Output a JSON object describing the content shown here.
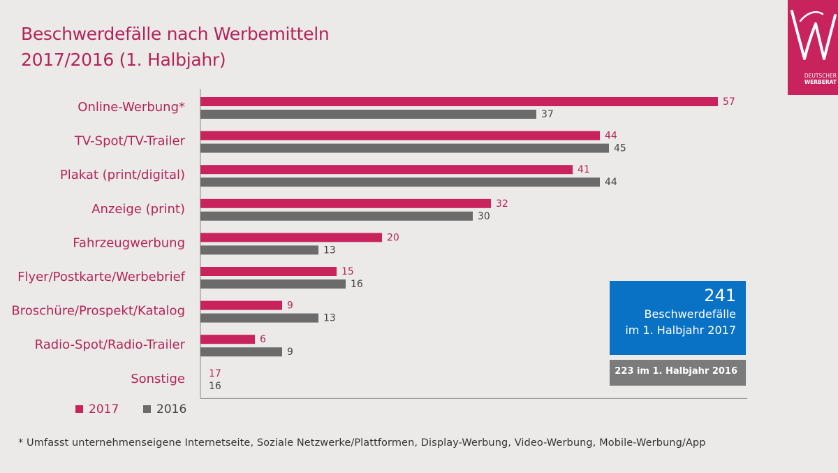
{
  "title_line1": "Beschwerdefälle nach Werbemitteln",
  "title_line2": "2017/2016 (1. Halbjahr)",
  "logo": {
    "icon": "werberat-w-logo",
    "line1": "DEUTSCHER",
    "line2": "WERBERAT"
  },
  "chart_data": {
    "type": "bar",
    "orientation": "horizontal",
    "title": "Beschwerdefälle nach Werbemitteln 2017/2016 (1. Halbjahr)",
    "categories": [
      "Online-Werbung*",
      "TV-Spot/TV-Trailer",
      "Plakat (print/digital)",
      "Anzeige (print)",
      "Fahrzeugwerbung",
      "Flyer/Postkarte/Werbebrief",
      "Broschüre/Prospekt/Katalog",
      "Radio-Spot/Radio-Trailer",
      "Sonstige"
    ],
    "series": [
      {
        "name": "2017",
        "color": "#c8235c",
        "values": [
          57,
          44,
          41,
          32,
          20,
          15,
          9,
          6,
          17
        ]
      },
      {
        "name": "2016",
        "color": "#6b6b6b",
        "values": [
          37,
          45,
          44,
          30,
          13,
          16,
          13,
          9,
          16
        ]
      }
    ],
    "value_labels_bar_scaled": [
      true,
      true,
      true,
      true,
      true,
      true,
      true,
      true,
      false
    ],
    "xlim": [
      0,
      58
    ],
    "legend_position": "bottom-left"
  },
  "kpi": {
    "number": "241",
    "line1": "Beschwerdefälle",
    "line2": "im 1. Halbjahr 2017",
    "color": "#0a72c4"
  },
  "kpi_secondary": {
    "text": "223 im 1. Halbjahr 2016",
    "color": "#7b7b7b"
  },
  "footnote": "* Umfasst  unternehmenseigene Internetseite, Soziale Netzwerke/Plattformen,  Display-Werbung,  Video-Werbung,  Mobile-Werbung/App"
}
